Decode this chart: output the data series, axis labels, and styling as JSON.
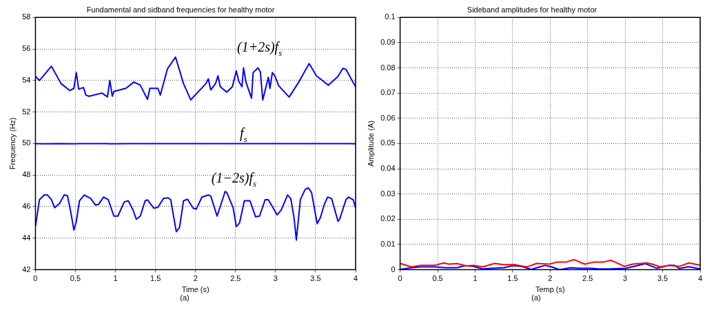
{
  "chart_data": [
    {
      "type": "line",
      "title": "Fundamental and sidband frequencies for healthy motor",
      "xlabel": "Time (s)",
      "ylabel": "Frequency (Hz)",
      "xlim": [
        0,
        4
      ],
      "xticks": [
        0,
        0.5,
        1,
        1.5,
        2,
        2.5,
        3,
        3.5,
        4
      ],
      "ylim": [
        42,
        58
      ],
      "yticks": [
        42,
        44,
        46,
        48,
        50,
        52,
        54,
        56,
        58
      ],
      "grid": true,
      "legend": false,
      "marker": "none",
      "line_style": "solid",
      "series": [
        {
          "name": "(1+2s)f$_{s}$",
          "color": "#0000ff",
          "x": [
            0,
            0.05,
            0.2,
            0.32,
            0.43,
            0.48,
            0.51,
            0.54,
            0.6,
            0.63,
            0.67,
            0.83,
            0.9,
            0.93,
            0.96,
            0.98,
            1.13,
            1.23,
            1.31,
            1.4,
            1.43,
            1.53,
            1.56,
            1.65,
            1.75,
            1.85,
            1.94,
            2.13,
            2.16,
            2.19,
            2.25,
            2.28,
            2.31,
            2.39,
            2.46,
            2.51,
            2.54,
            2.58,
            2.6,
            2.63,
            2.7,
            2.72,
            2.78,
            2.81,
            2.84,
            2.91,
            2.93,
            2.96,
            2.99,
            3.04,
            3.17,
            3.29,
            3.42,
            3.51,
            3.66,
            3.78,
            3.84,
            3.88,
            4
          ],
          "values": [
            54.25,
            54.0,
            54.9,
            53.8,
            53.36,
            53.5,
            54.5,
            53.45,
            53.55,
            53.07,
            53.0,
            53.2,
            52.96,
            54.0,
            53.0,
            53.3,
            53.5,
            53.9,
            53.7,
            52.8,
            53.5,
            53.5,
            53.07,
            54.74,
            55.48,
            53.8,
            52.77,
            53.8,
            54.1,
            53.4,
            53.8,
            54.3,
            53.6,
            53.26,
            53.6,
            54.6,
            53.96,
            53.6,
            54.8,
            53.9,
            52.87,
            54.5,
            54.8,
            54.55,
            52.76,
            54.2,
            53.5,
            54.5,
            54.3,
            53.66,
            52.95,
            53.9,
            55.07,
            54.3,
            53.7,
            54.25,
            54.77,
            54.7,
            53.6
          ]
        },
        {
          "name": "f$_{s}$",
          "color": "#0000ff",
          "x": [
            0,
            0.1,
            0.3,
            0.48,
            0.55,
            0.9,
            0.93,
            1.2,
            2,
            3,
            3.9,
            4
          ],
          "values": [
            50.0,
            49.98,
            50.0,
            49.98,
            50.0,
            50.0,
            49.98,
            50.0,
            50.0,
            50.0,
            50.0,
            49.98
          ]
        },
        {
          "name": "(1−2s)f$_{s}$",
          "color": "#0000ff",
          "x": [
            0,
            0.05,
            0.11,
            0.15,
            0.2,
            0.24,
            0.3,
            0.36,
            0.4,
            0.44,
            0.48,
            0.51,
            0.55,
            0.61,
            0.69,
            0.75,
            0.79,
            0.85,
            0.91,
            0.98,
            1.03,
            1.11,
            1.16,
            1.22,
            1.26,
            1.31,
            1.37,
            1.4,
            1.48,
            1.53,
            1.6,
            1.66,
            1.69,
            1.76,
            1.8,
            1.85,
            1.9,
            1.97,
            2.01,
            2.08,
            2.16,
            2.19,
            2.27,
            2.37,
            2.39,
            2.47,
            2.51,
            2.55,
            2.61,
            2.68,
            2.75,
            2.8,
            2.87,
            2.91,
            3.02,
            3.07,
            3.15,
            3.19,
            3.23,
            3.26,
            3.31,
            3.37,
            3.41,
            3.45,
            3.52,
            3.56,
            3.61,
            3.65,
            3.7,
            3.78,
            3.8,
            3.88,
            3.91,
            3.97,
            4
          ],
          "values": [
            44.74,
            46.44,
            46.74,
            46.74,
            46.44,
            45.93,
            46.2,
            46.74,
            46.7,
            45.7,
            44.52,
            45.04,
            46.37,
            46.74,
            46.52,
            46.1,
            46.15,
            46.6,
            46.44,
            45.4,
            45.4,
            46.3,
            46.37,
            45.78,
            45.2,
            45.4,
            46.37,
            46.43,
            45.9,
            45.96,
            46.52,
            46.56,
            46.44,
            44.41,
            44.67,
            46.37,
            46.47,
            45.9,
            45.85,
            46.6,
            46.74,
            46.67,
            45.4,
            46.96,
            46.9,
            45.93,
            44.74,
            44.96,
            46.37,
            46.37,
            45.36,
            45.4,
            46.44,
            46.44,
            45.48,
            45.78,
            46.74,
            46.52,
            45.33,
            43.88,
            46.44,
            47.1,
            47.19,
            46.89,
            44.92,
            45.3,
            46.15,
            46.6,
            46.52,
            45.07,
            45.19,
            46.44,
            46.6,
            46.44,
            45.93
          ]
        }
      ],
      "annotations": [
        "(a)"
      ]
    },
    {
      "type": "line",
      "title": "Sideband amplitudes for healthy motor",
      "xlabel": "Temp (s)",
      "ylabel": "Amplitude (A)",
      "xlim": [
        0,
        4
      ],
      "xticks": [
        0,
        0.5,
        1,
        1.5,
        2,
        2.5,
        3,
        3.5,
        4
      ],
      "ylim": [
        0,
        0.1
      ],
      "yticks": [
        0,
        0.01,
        0.02,
        0.03,
        0.04,
        0.05,
        0.06,
        0.07,
        0.08,
        0.09,
        0.1
      ],
      "grid": true,
      "legend": false,
      "marker": "none",
      "line_style": "solid",
      "series": [
        {
          "color": "#ff0000",
          "x": [
            0,
            0.15,
            0.27,
            0.46,
            0.58,
            0.65,
            0.76,
            0.89,
            0.99,
            1.1,
            1.26,
            1.38,
            1.53,
            1.69,
            1.82,
            1.99,
            2.09,
            2.21,
            2.32,
            2.46,
            2.58,
            2.7,
            2.81,
            2.87,
            2.99,
            3.1,
            3.29,
            3.36,
            3.47,
            3.58,
            3.72,
            3.85,
            4
          ],
          "values": [
            0.0025,
            0.0011,
            0.0017,
            0.0017,
            0.0027,
            0.0022,
            0.0024,
            0.0015,
            0.0017,
            0.0011,
            0.0025,
            0.002,
            0.002,
            0.0011,
            0.0025,
            0.0022,
            0.003,
            0.003,
            0.004,
            0.0022,
            0.003,
            0.003,
            0.0037,
            0.003,
            0.0013,
            0.0022,
            0.0027,
            0.0022,
            0.0011,
            0.0017,
            0.0013,
            0.0027,
            0.0018
          ]
        },
        {
          "color": "#0000ff",
          "x": [
            0,
            0.15,
            0.27,
            0.46,
            0.61,
            0.76,
            0.86,
            0.98,
            1.1,
            1.22,
            1.38,
            1.5,
            1.62,
            1.75,
            1.86,
            1.93,
            2.02,
            2.13,
            2.27,
            2.39,
            2.55,
            2.64,
            2.79,
            3.01,
            3.16,
            3.27,
            3.42,
            3.58,
            3.66,
            3.72,
            3.85,
            4
          ],
          "values": [
            0.0001,
            0.0008,
            0.0011,
            0.0011,
            0.0008,
            0.0008,
            0.0016,
            0.0013,
            0.0003,
            0.0006,
            0.0008,
            0.0016,
            0.0013,
            0.0001,
            0.0011,
            0.0017,
            0.0011,
            0,
            0.0008,
            0.0006,
            0.0006,
            0.0003,
            0.0003,
            0.0006,
            0.0016,
            0.0024,
            0.0006,
            0.0017,
            0.0017,
            0.0005,
            0.0012,
            0.0003
          ]
        }
      ],
      "annotations": [
        "(a)"
      ]
    }
  ]
}
